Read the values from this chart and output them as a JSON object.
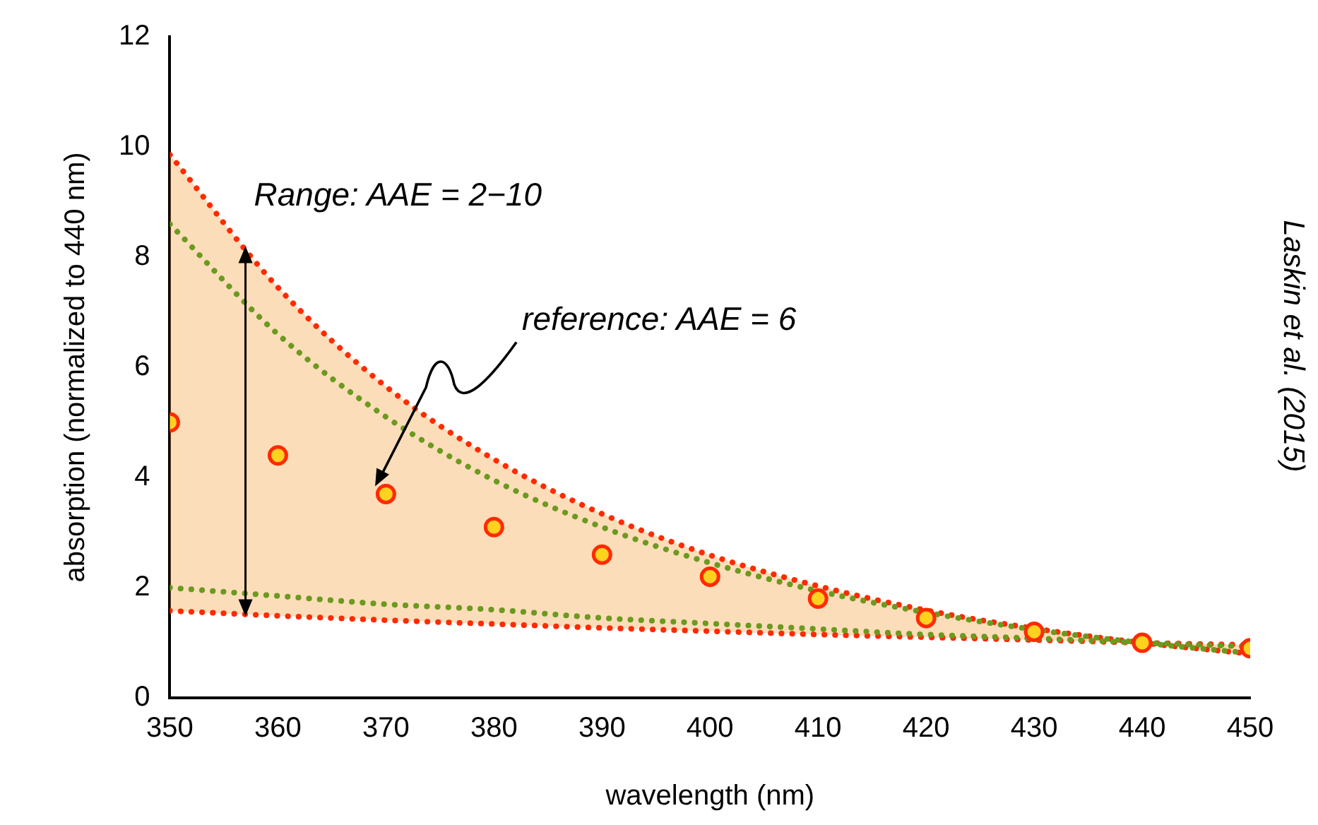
{
  "chart_data": {
    "type": "line",
    "xlabel": "wavelength (nm)",
    "ylabel": "absorption (normalized to 440 nm)",
    "x": [
      350,
      360,
      370,
      380,
      390,
      400,
      410,
      420,
      430,
      440,
      450
    ],
    "xlim": [
      350,
      450
    ],
    "xticks": [
      350,
      360,
      370,
      380,
      390,
      400,
      410,
      420,
      430,
      440,
      450
    ],
    "ylim": [
      0,
      12
    ],
    "yticks": [
      0,
      2,
      4,
      6,
      8,
      10,
      12
    ],
    "grid": false,
    "legend": false,
    "series": [
      {
        "color": "#ff2a00",
        "marker": "none",
        "line_style": "dotted",
        "values": [
          9.86,
          7.45,
          5.65,
          4.33,
          3.34,
          2.59,
          2.03,
          1.59,
          1.26,
          1.0,
          0.8
        ],
        "upper": [
          9.86,
          7.45,
          5.65,
          4.33,
          3.34,
          2.59,
          2.03,
          1.59,
          1.26,
          1.0,
          0.8
        ],
        "lower": [
          1.58,
          1.49,
          1.41,
          1.34,
          1.27,
          1.21,
          1.15,
          1.1,
          1.05,
          1.0,
          0.96
        ]
      },
      {
        "color": "#ff2a00",
        "marker": "none",
        "line_style": "dotted",
        "values": [
          1.58,
          1.49,
          1.41,
          1.34,
          1.27,
          1.21,
          1.15,
          1.1,
          1.05,
          1.0,
          0.96
        ]
      },
      {
        "color": "#6b9a1f",
        "marker": "none",
        "line_style": "dotted",
        "values": [
          8.6,
          6.6,
          5.1,
          3.95,
          3.1,
          2.45,
          1.94,
          1.55,
          1.24,
          1.0,
          0.81
        ]
      },
      {
        "color": "#6b9a1f",
        "marker": "none",
        "line_style": "dotted",
        "values": [
          2.0,
          1.85,
          1.7,
          1.6,
          1.45,
          1.35,
          1.25,
          1.15,
          1.08,
          1.0,
          0.93
        ]
      },
      {
        "type": "scatter",
        "color": "#ff2a00",
        "marker": "circle",
        "values": [
          5.0,
          4.4,
          3.7,
          3.1,
          2.6,
          2.2,
          1.8,
          1.45,
          1.2,
          1.0,
          0.9
        ]
      }
    ],
    "annotations": [
      {
        "text": "Range: AAE = 2−10",
        "x": 357,
        "y": 8.2
      },
      "reference: AAE = 6",
      "Laskin et al. (2015)"
    ]
  }
}
